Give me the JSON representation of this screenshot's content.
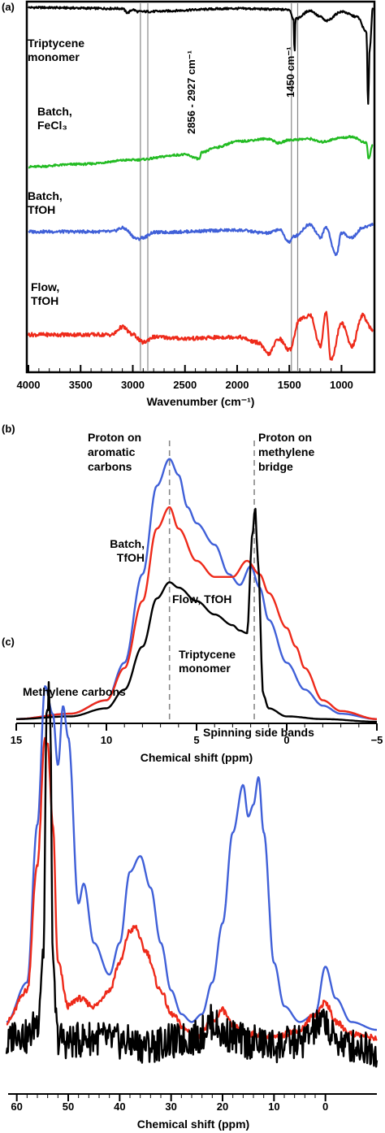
{
  "colors": {
    "black": "#000000",
    "green": "#22bb22",
    "blue": "#4060d8",
    "red": "#ee2a1a",
    "guide": "#888888"
  },
  "chart_data": [
    {
      "panel": "(a)",
      "type": "line",
      "xlabel": "Wavenumber (cm⁻¹)",
      "xlim": [
        4000,
        700
      ],
      "x_ticks": [
        "4000",
        "3500",
        "3000",
        "2500",
        "2000",
        "1500",
        "1000"
      ],
      "x_tick_values": [
        4000,
        3500,
        3000,
        2500,
        2000,
        1500,
        1000
      ],
      "annotations": [
        {
          "text": "2856 - 2927 cm⁻¹",
          "lines": [
            2856,
            2927
          ]
        },
        {
          "text": "1450 cm⁻¹",
          "lines": [
            1480,
            1420
          ]
        }
      ],
      "series": [
        {
          "name": "Triptycene monomer",
          "label_lines": [
            "Triptycene",
            "monomer"
          ],
          "color": "#000000",
          "x": [
            4000,
            3100,
            3050,
            3000,
            2950,
            2000,
            1500,
            1460,
            1450,
            1440,
            1300,
            1200,
            1150,
            1000,
            850,
            760,
            745,
            730,
            700
          ],
          "y": [
            99,
            98,
            94,
            97,
            95,
            98,
            97,
            88,
            55,
            88,
            96,
            90,
            86,
            95,
            90,
            75,
            5,
            60,
            98
          ]
        },
        {
          "name": "Batch, FeCl3",
          "label_lines": [
            "Batch,",
            "FeCl₃"
          ],
          "color": "#22bb22",
          "x": [
            4000,
            3500,
            3000,
            2500,
            2360,
            2340,
            2200,
            2000,
            1700,
            1600,
            1500,
            1300,
            1200,
            1000,
            900,
            760,
            740,
            700
          ],
          "y": [
            15,
            20,
            28,
            38,
            30,
            42,
            52,
            63,
            68,
            60,
            66,
            68,
            62,
            70,
            72,
            60,
            30,
            58
          ]
        },
        {
          "name": "Batch, TfOH",
          "label_lines": [
            "Batch,",
            "TfOH"
          ],
          "color": "#4060d8",
          "x": [
            4000,
            3200,
            3100,
            2950,
            2900,
            2800,
            2000,
            1700,
            1600,
            1500,
            1450,
            1300,
            1200,
            1150,
            1050,
            1000,
            900,
            800,
            700
          ],
          "y": [
            50,
            50,
            55,
            40,
            42,
            49,
            52,
            48,
            53,
            36,
            44,
            60,
            42,
            56,
            18,
            48,
            42,
            55,
            60
          ]
        },
        {
          "name": "Flow, TfOH",
          "label_lines": [
            "Flow,",
            "TfOH"
          ],
          "color": "#ee2a1a",
          "x": [
            4000,
            3200,
            3100,
            3000,
            2900,
            2800,
            2500,
            2000,
            1800,
            1700,
            1600,
            1500,
            1400,
            1300,
            1200,
            1150,
            1100,
            1000,
            900,
            800,
            700
          ],
          "y": [
            35,
            35,
            45,
            35,
            25,
            32,
            30,
            32,
            25,
            10,
            30,
            15,
            55,
            60,
            20,
            65,
            2,
            50,
            20,
            60,
            40
          ]
        }
      ]
    },
    {
      "panel": "(b)",
      "type": "line",
      "xlabel": "Chemical shift (ppm)",
      "xlim": [
        15,
        -5
      ],
      "ylim": [
        0,
        100
      ],
      "x_ticks": [
        "15",
        "10",
        "5",
        "0",
        "−5"
      ],
      "x_tick_values": [
        15,
        10,
        5,
        0,
        -5
      ],
      "annotations": [
        {
          "text_lines": [
            "Proton on",
            "aromatic",
            "carbons"
          ],
          "x": 6.5
        },
        {
          "text_lines": [
            "Proton on",
            "methylene",
            "bridge"
          ],
          "x": 1.8
        }
      ],
      "series": [
        {
          "name": "Batch, TfOH",
          "label_lines": [
            "Batch,",
            "TfOH"
          ],
          "color": "#4060d8",
          "x": [
            15,
            12,
            10,
            9,
            8,
            7.2,
            6.5,
            6,
            5.5,
            5,
            4,
            3.2,
            2.6,
            2.0,
            1.5,
            1.0,
            0,
            -1,
            -2,
            -3,
            -5
          ],
          "y": [
            1,
            3,
            8,
            22,
            55,
            88,
            98,
            92,
            80,
            74,
            66,
            55,
            51,
            58,
            50,
            38,
            22,
            12,
            6,
            3,
            1
          ]
        },
        {
          "name": "Flow, TfOH",
          "label_lines": [
            "Flow, TfOH"
          ],
          "color": "#ee2a1a",
          "x": [
            15,
            12,
            10,
            9,
            8,
            7.2,
            6.5,
            6,
            5,
            4,
            3,
            2.2,
            1.5,
            1,
            0,
            -0.5,
            -1,
            -2,
            -3,
            -5
          ],
          "y": [
            1,
            3,
            8,
            20,
            45,
            72,
            80,
            72,
            60,
            54,
            54,
            60,
            55,
            48,
            35,
            28,
            20,
            8,
            4,
            1
          ]
        },
        {
          "name": "Triptycene monomer",
          "label_lines": [
            "Triptycene",
            "monomer"
          ],
          "color": "#000000",
          "x": [
            15,
            12,
            10,
            9,
            8,
            7.2,
            6.5,
            6,
            5,
            4,
            3,
            2.6,
            2.2,
            1.9,
            1.75,
            1.6,
            1.3,
            1,
            0,
            -2,
            -5
          ],
          "y": [
            1,
            2,
            5,
            12,
            28,
            46,
            52,
            50,
            45,
            40,
            36,
            34,
            33,
            70,
            80,
            60,
            10,
            5,
            2,
            1,
            0
          ]
        }
      ]
    },
    {
      "panel": "(c)",
      "type": "line",
      "xlabel": "Chemical shift (ppm)",
      "xlim": [
        62,
        -10
      ],
      "ylim": [
        0,
        100
      ],
      "x_ticks": [
        "60",
        "50",
        "40",
        "30",
        "20",
        "10",
        "0"
      ],
      "x_tick_values": [
        60,
        50,
        40,
        30,
        20,
        10,
        0
      ],
      "annotations": [
        {
          "text": "Methylene carbons"
        },
        {
          "text": "Spinning side bands"
        }
      ],
      "series": [
        {
          "name": "blue",
          "color": "#4060d8",
          "x": [
            62,
            58,
            56,
            54.5,
            53,
            52,
            51,
            50,
            48,
            47,
            45,
            42,
            40,
            38,
            36,
            34,
            32,
            30,
            28,
            26,
            24,
            22,
            20,
            18,
            16,
            15,
            14,
            13,
            12,
            10,
            8,
            5,
            2,
            0,
            -2,
            -5,
            -10
          ],
          "y": [
            10,
            20,
            60,
            95,
            88,
            75,
            90,
            82,
            40,
            45,
            30,
            22,
            30,
            48,
            52,
            44,
            30,
            18,
            12,
            10,
            12,
            20,
            35,
            58,
            70,
            62,
            65,
            72,
            58,
            25,
            14,
            10,
            12,
            24,
            16,
            10,
            8
          ]
        },
        {
          "name": "red",
          "color": "#ee2a1a",
          "x": [
            62,
            58,
            56,
            54.5,
            54,
            53,
            52,
            50,
            48,
            45,
            42,
            40,
            38,
            37,
            35,
            32,
            30,
            27,
            25,
            22,
            20,
            18,
            15,
            10,
            5,
            2,
            0,
            -2,
            -5,
            -10
          ],
          "y": [
            10,
            18,
            50,
            82,
            80,
            60,
            25,
            14,
            16,
            14,
            18,
            25,
            33,
            34,
            28,
            18,
            12,
            8,
            6,
            10,
            13,
            9,
            7,
            6,
            8,
            12,
            15,
            10,
            7,
            6
          ]
        },
        {
          "name": "black",
          "color": "#000000",
          "x": [
            62,
            60,
            58,
            56,
            54.8,
            54.2,
            53.8,
            53.4,
            53,
            52,
            50,
            45,
            40,
            35,
            30,
            25,
            22,
            20,
            15,
            10,
            5,
            1,
            0,
            -1,
            -5,
            -10
          ],
          "y": [
            4,
            8,
            6,
            10,
            28,
            85,
            95,
            80,
            22,
            6,
            5,
            6,
            5,
            4,
            5,
            6,
            10,
            7,
            5,
            4,
            5,
            9,
            11,
            6,
            4,
            3
          ]
        }
      ]
    }
  ],
  "panel_labels": [
    "(a)",
    "(b)",
    "(c)"
  ]
}
